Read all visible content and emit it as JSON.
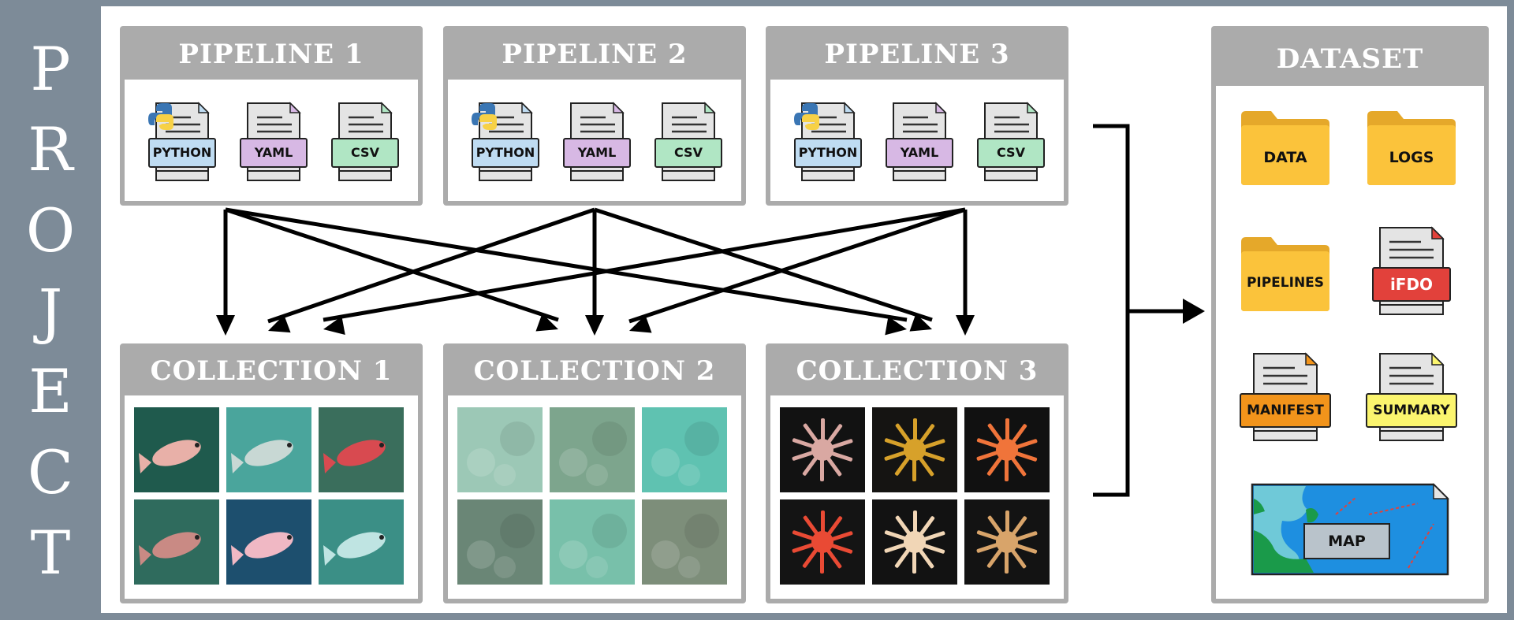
{
  "project": {
    "letters": [
      "P",
      "R",
      "O",
      "J",
      "E",
      "C",
      "T"
    ]
  },
  "pipelines": [
    {
      "title": "PIPELINE 1",
      "files": [
        "PYTHON",
        "YAML",
        "CSV"
      ]
    },
    {
      "title": "PIPELINE 2",
      "files": [
        "PYTHON",
        "YAML",
        "CSV"
      ]
    },
    {
      "title": "PIPELINE 3",
      "files": [
        "PYTHON",
        "YAML",
        "CSV"
      ]
    }
  ],
  "collections": [
    {
      "title": "COLLECTION 1",
      "theme": "fish"
    },
    {
      "title": "COLLECTION 2",
      "theme": "seafloor"
    },
    {
      "title": "COLLECTION 3",
      "theme": "specimens"
    }
  ],
  "dataset": {
    "title": "DATASET",
    "folders": [
      "DATA",
      "LOGS",
      "PIPELINES"
    ],
    "files": [
      "iFDO",
      "MANIFEST",
      "SUMMARY"
    ],
    "map_label": "MAP"
  },
  "colors": {
    "band": "#7d8b98",
    "panel_gray": "#ababab",
    "python": "#bfdcf2",
    "yaml": "#d7b8e4",
    "csv": "#b0e6c4",
    "folder": "#fbc33b",
    "ifdo": "#e2413b",
    "manifest": "#f2941b",
    "summary": "#fbf56e",
    "map_sea": "#1e8fe0"
  }
}
